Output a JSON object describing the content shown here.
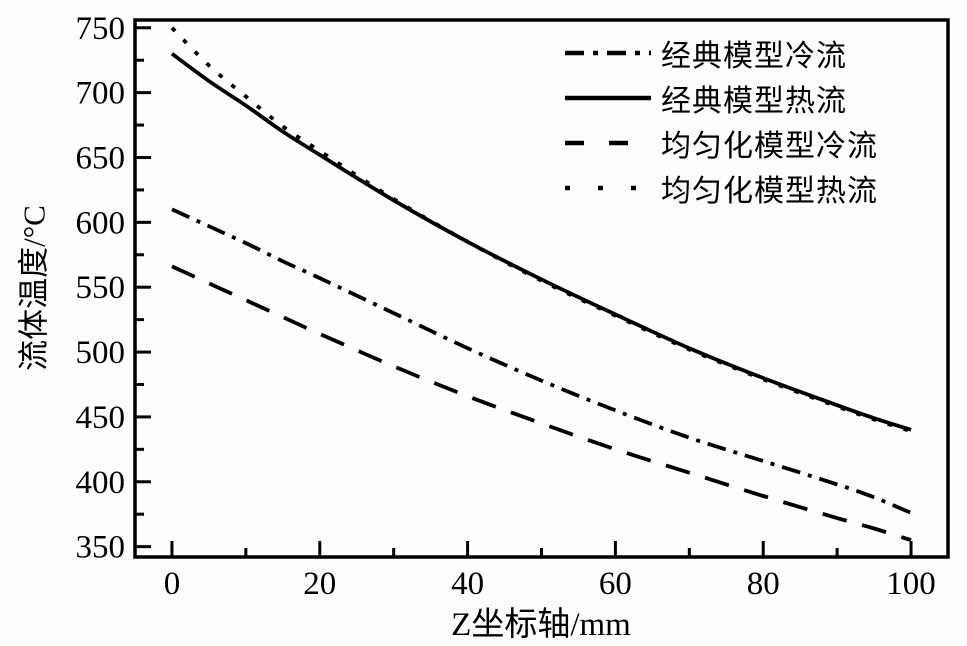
{
  "chart_data": {
    "type": "line",
    "title": "",
    "xlabel": "Z坐标轴/mm",
    "ylabel": "流体温度/°C",
    "xlim": [
      -5,
      105
    ],
    "ylim": [
      342,
      756
    ],
    "grid": false,
    "legend_position": "top-right-inside",
    "line_color": "#000000",
    "background": "#fdfdfd",
    "x_ticks_major": [
      0,
      20,
      40,
      60,
      80,
      100
    ],
    "x_ticks_minor": [
      10,
      30,
      50,
      70,
      90
    ],
    "y_ticks_major": [
      350,
      400,
      450,
      500,
      550,
      600,
      650,
      700,
      750
    ],
    "y_ticks_minor": [
      375,
      425,
      475,
      525,
      575,
      625,
      675,
      725
    ],
    "x": [
      0,
      5,
      10,
      15,
      20,
      30,
      40,
      50,
      60,
      70,
      80,
      90,
      95,
      100
    ],
    "series": [
      {
        "name": "经典模型冷流",
        "style": "dashdot",
        "values": [
          610,
          597,
          584,
          570,
          557,
          530,
          503,
          478,
          455,
          434,
          416,
          398,
          388,
          376
        ]
      },
      {
        "name": "经典模型热流",
        "style": "solid",
        "values": [
          730,
          709,
          690,
          670,
          652,
          617,
          585,
          556,
          529,
          503,
          480,
          459,
          449,
          440
        ]
      },
      {
        "name": "均匀化模型冷流",
        "style": "dashed",
        "values": [
          566,
          553,
          540,
          527,
          514,
          489,
          466,
          445,
          425,
          407,
          389,
          372,
          364,
          355
        ]
      },
      {
        "name": "均匀化模型热流",
        "style": "dotted",
        "values": [
          750,
          721,
          697,
          674,
          655,
          618,
          585,
          555,
          528,
          502,
          479,
          458,
          448,
          439
        ]
      }
    ]
  }
}
